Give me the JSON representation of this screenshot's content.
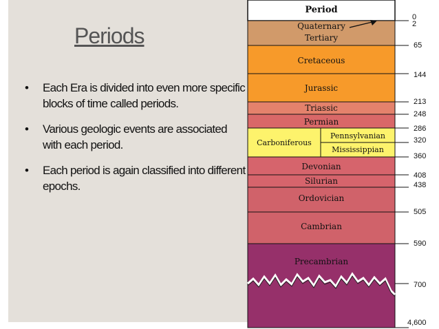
{
  "slide": {
    "title": "Periods",
    "bullets": [
      "Each Era is divided into  even more specific blocks  of time called periods.",
      "Various geologic events  are associated with each  period.",
      "Each period  is again  classified into different  epochs."
    ],
    "bullet_glyph": "•"
  },
  "timescale": {
    "header": "Period",
    "periods": [
      {
        "name": "Quaternary",
        "color": "#d19a6a"
      },
      {
        "name": "Tertiary",
        "color": "#d19a6a"
      },
      {
        "name": "Cretaceous",
        "color": "#f79a2a"
      },
      {
        "name": "Jurassic",
        "color": "#f79a2a"
      },
      {
        "name": "Triassic",
        "color": "#e4826c"
      },
      {
        "name": "Permian",
        "color": "#d96868"
      },
      {
        "name": "Carboniferous",
        "color": "#fdf36c"
      },
      {
        "name": "Pennsylvanian",
        "color": "#fdf36c"
      },
      {
        "name": "Mississippian",
        "color": "#fdf36c"
      },
      {
        "name": "Devonian",
        "color": "#d6646c"
      },
      {
        "name": "Silurian",
        "color": "#d6646c"
      },
      {
        "name": "Ordovician",
        "color": "#d0626a"
      },
      {
        "name": "Cambrian",
        "color": "#d0626a"
      },
      {
        "name": "Precambrian",
        "color": "#96306a"
      }
    ],
    "ages": [
      "0",
      "2",
      "65",
      "144",
      "213",
      "248",
      "286",
      "320",
      "360",
      "408",
      "438",
      "505",
      "590",
      "700",
      "4,600"
    ]
  }
}
